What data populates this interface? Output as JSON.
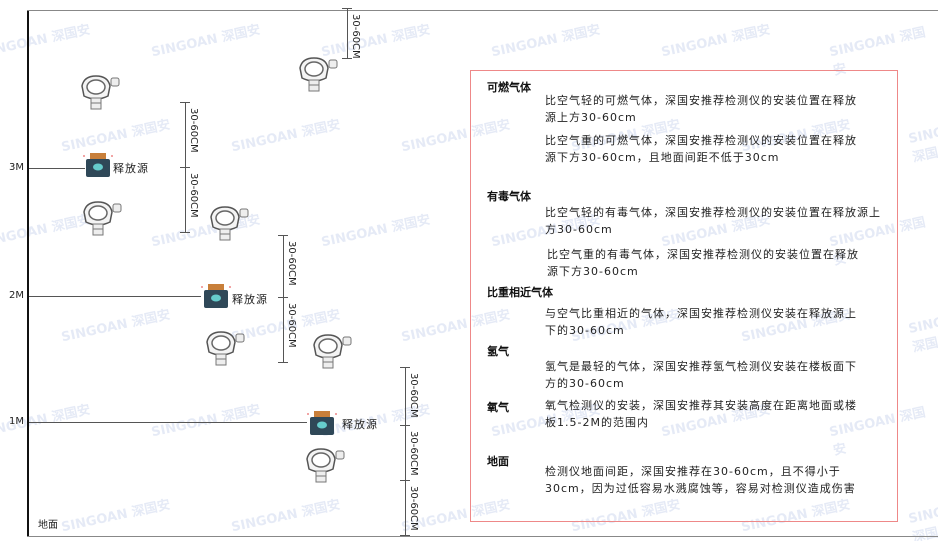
{
  "levels": {
    "m3": "3M",
    "m2": "2M",
    "m1": "1M",
    "ground": "地面"
  },
  "source_label": "释放源",
  "dimension_label": "30-60CM",
  "watermark": "SINGOAN 深国安",
  "colors": {
    "box_border": "#ee8888",
    "source_body": "#2f4858",
    "source_cap": "#c87f3a"
  },
  "notes": [
    {
      "title": "可燃气体",
      "items": [
        "比空气轻的可燃气体，深国安推荐检测仪的安装位置在释放源上方30-60cm",
        "比空气重的可燃气体，深国安推荐检测仪的安装位置在释放源下方30-60cm，且地面间距不低于30cm"
      ]
    },
    {
      "title": "有毒气体",
      "items": [
        "比空气轻的有毒气体，深国安推荐检测仪的安装位置在释放源上方30-60cm",
        "比空气重的有毒气体，深国安推荐检测仪的安装位置在释放源下方30-60cm"
      ]
    },
    {
      "title": "比重相近气体",
      "items": [
        "与空气比重相近的气体，深国安推荐检测仪安装在释放源上下的30-60cm"
      ]
    },
    {
      "title": "氢气",
      "items": [
        "氢气是最轻的气体，深国安推荐氢气检测仪安装在楼板面下方的30-60cm"
      ]
    },
    {
      "title": "氧气",
      "items": [
        "氧气检测仪的安装，深国安推荐其安装高度在距离地面或楼板1.5-2M的范围内"
      ]
    },
    {
      "title": "地面",
      "items": [
        "检测仪地面间距，深国安推荐在30-60cm，且不得小于30cm，因为过低容易水溅腐蚀等，容易对检测仪造成伤害"
      ]
    }
  ]
}
